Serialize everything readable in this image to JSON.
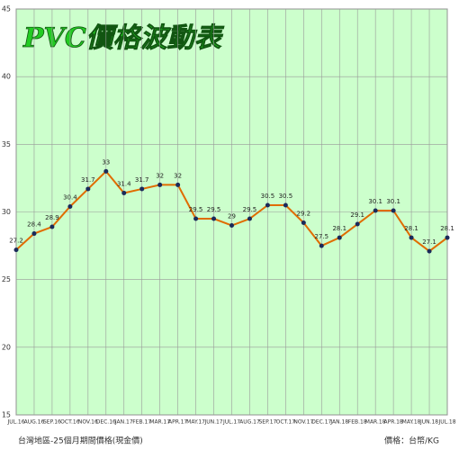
{
  "chart_data": {
    "type": "line",
    "title": "PVC價格波動表",
    "categories": [
      "JUL.16",
      "AUG.16",
      "SEP.16",
      "OCT.16",
      "NOV.16",
      "DEC.16",
      "JAN.17",
      "FEB.17",
      "MAR.17",
      "APR.17",
      "MAY.17",
      "JUN.17",
      "JUL.17",
      "AUG.17",
      "SEP.17",
      "OCT.17",
      "NOV.17",
      "DEC.17",
      "JAN.18",
      "FEB.18",
      "MAR.18",
      "APR.18",
      "MAY.18",
      "JUN.18",
      "JUL.18"
    ],
    "values": [
      27.2,
      28.4,
      28.9,
      30.4,
      31.7,
      33,
      31.4,
      31.7,
      32,
      32,
      29.5,
      29.5,
      29,
      29.5,
      30.5,
      30.5,
      29.2,
      27.5,
      28.1,
      29.1,
      30.1,
      30.1,
      28.1,
      27.1,
      28.1
    ],
    "color": "#e06c00",
    "marker_color": "#1a2a5a",
    "ylim": [
      15,
      45
    ],
    "yticks": [
      15,
      20,
      25,
      30,
      35,
      40,
      45
    ],
    "grid": true,
    "footnote": "台灣地區-25個月期間價格(現金價)",
    "unit_note": "價格：台幣/KG"
  }
}
